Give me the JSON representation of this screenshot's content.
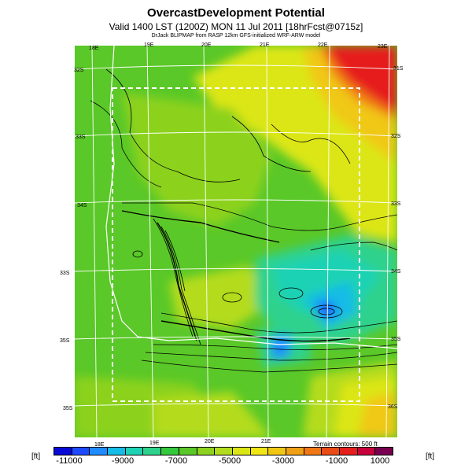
{
  "header": {
    "title": "OvercastDevelopment Potential",
    "subtitle": "Valid 1400 LST (1200Z) MON 11 Jul 2011 [18hrFcst@0715z]",
    "credit": "DrJack BLIPMAP from RASP 12km GFS-initialized WRF-ARW model"
  },
  "map": {
    "top_lon_labels": [
      "18E",
      "19E",
      "20E",
      "21E",
      "22E",
      "23E"
    ],
    "bottom_lon_labels": [
      "18E",
      "19E",
      "20E",
      "21E"
    ],
    "left_lat_labels": [
      "32S",
      "33S",
      "34S",
      "35S"
    ],
    "right_lat_labels": [
      "31S",
      "32S",
      "33S",
      "34S",
      "35S",
      "36S"
    ],
    "left_lat_mid": [
      "33S"
    ],
    "terrain_note": "Terrain contours: 500 ft"
  },
  "colorbar": {
    "unit_left": "[ft]",
    "unit_right": "[ft]",
    "labels": [
      "-11000",
      "-9000",
      "-7000",
      "-5000",
      "-3000",
      "-1000",
      "1000"
    ],
    "colors": [
      "#0a0ad6",
      "#1e4bff",
      "#1e8cff",
      "#14bce6",
      "#1ed2b4",
      "#2ed28c",
      "#34c83c",
      "#5ac828",
      "#8cd21e",
      "#b4dc1e",
      "#dce614",
      "#f0e614",
      "#f0c814",
      "#f0a014",
      "#f07814",
      "#eb4b14",
      "#e61e1e",
      "#c8003c",
      "#780050"
    ]
  }
}
